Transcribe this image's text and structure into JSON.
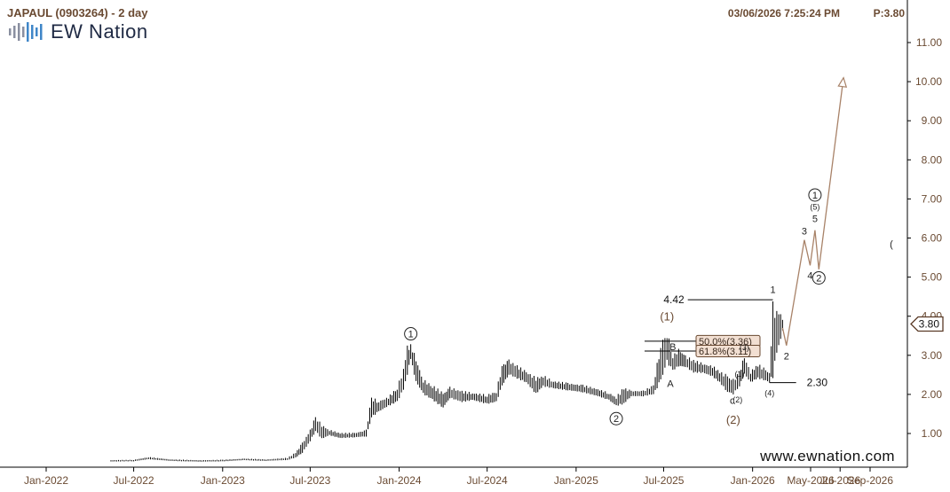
{
  "header": {
    "symbol": "JAPAUL (0903264) - 2 day",
    "datetime": "03/06/2026 7:25:24 PM",
    "price_label": "P:3.80",
    "logo_text": "EW Nation",
    "watermark": "www.ewnation.com"
  },
  "colors": {
    "wave_path": "#a88268",
    "wave_label": "#6a4a32",
    "price_bar": "#000000",
    "label_fill": "#f2dfd2",
    "label_border": "#6a4a32"
  },
  "chart_data": {
    "type": "bar",
    "y_axis": {
      "range": [
        0.5,
        11.6
      ],
      "ticks": [
        "1.00",
        "2.00",
        "3.00",
        "4.00",
        "5.00",
        "6.00",
        "7.00",
        "8.00",
        "9.00",
        "10.00",
        "11.00"
      ],
      "position": "right"
    },
    "x_axis": {
      "ticks": [
        "Jan-2022",
        "Jul-2022",
        "Jan-2023",
        "Jul-2023",
        "Jan-2024",
        "Jul-2024",
        "Jan-2025",
        "Jul-2025",
        "Jan-2026",
        "May-2026",
        "Jul-2026",
        "Sep-2026"
      ]
    },
    "price_series": [
      [
        "2022-05-15",
        0.3,
        0.32
      ],
      [
        "2022-07-01",
        0.29,
        0.33
      ],
      [
        "2022-08-01",
        0.34,
        0.4
      ],
      [
        "2022-09-15",
        0.3,
        0.34
      ],
      [
        "2022-11-15",
        0.28,
        0.32
      ],
      [
        "2023-01-01",
        0.29,
        0.33
      ],
      [
        "2023-02-15",
        0.32,
        0.36
      ],
      [
        "2023-04-01",
        0.3,
        0.34
      ],
      [
        "2023-05-15",
        0.32,
        0.38
      ],
      [
        "2023-06-01",
        0.38,
        0.52
      ],
      [
        "2023-06-15",
        0.5,
        0.78
      ],
      [
        "2023-07-01",
        0.8,
        1.1
      ],
      [
        "2023-07-12",
        1.05,
        1.45
      ],
      [
        "2023-07-25",
        0.85,
        1.25
      ],
      [
        "2023-08-10",
        0.95,
        1.1
      ],
      [
        "2023-09-01",
        0.88,
        1.02
      ],
      [
        "2023-10-01",
        0.9,
        1.02
      ],
      [
        "2023-10-25",
        0.92,
        1.1
      ],
      [
        "2023-11-05",
        1.4,
        1.95
      ],
      [
        "2023-11-20",
        1.55,
        1.85
      ],
      [
        "2023-12-10",
        1.7,
        1.95
      ],
      [
        "2023-12-28",
        1.8,
        2.2
      ],
      [
        "2024-01-10",
        2.1,
        2.7
      ],
      [
        "2024-01-18",
        2.5,
        3.25
      ],
      [
        "2024-01-25",
        2.9,
        3.3
      ],
      [
        "2024-02-05",
        2.3,
        2.95
      ],
      [
        "2024-02-20",
        2.0,
        2.4
      ],
      [
        "2024-03-10",
        1.85,
        2.25
      ],
      [
        "2024-04-01",
        1.65,
        2.05
      ],
      [
        "2024-04-15",
        1.9,
        2.2
      ],
      [
        "2024-05-10",
        1.8,
        2.1
      ],
      [
        "2024-06-01",
        1.85,
        2.05
      ],
      [
        "2024-07-01",
        1.75,
        2.0
      ],
      [
        "2024-07-20",
        1.8,
        2.1
      ],
      [
        "2024-08-01",
        2.2,
        2.8
      ],
      [
        "2024-08-15",
        2.5,
        2.9
      ],
      [
        "2024-09-01",
        2.4,
        2.75
      ],
      [
        "2024-09-20",
        2.3,
        2.6
      ],
      [
        "2024-10-10",
        2.0,
        2.45
      ],
      [
        "2024-10-25",
        2.2,
        2.5
      ],
      [
        "2024-11-15",
        2.15,
        2.35
      ],
      [
        "2024-12-15",
        2.1,
        2.3
      ],
      [
        "2025-01-15",
        2.05,
        2.25
      ],
      [
        "2025-02-15",
        1.95,
        2.15
      ],
      [
        "2025-03-10",
        1.85,
        2.05
      ],
      [
        "2025-03-25",
        1.7,
        1.95
      ],
      [
        "2025-04-10",
        1.75,
        2.2
      ],
      [
        "2025-04-25",
        1.95,
        2.1
      ],
      [
        "2025-05-20",
        1.95,
        2.1
      ],
      [
        "2025-06-10",
        2.0,
        2.25
      ],
      [
        "2025-06-25",
        2.3,
        3.4
      ],
      [
        "2025-07-08",
        2.8,
        3.65
      ],
      [
        "2025-07-20",
        2.6,
        3.0
      ],
      [
        "2025-08-01",
        2.7,
        3.2
      ],
      [
        "2025-08-15",
        2.7,
        3.0
      ],
      [
        "2025-09-01",
        2.55,
        2.9
      ],
      [
        "2025-09-20",
        2.55,
        2.8
      ],
      [
        "2025-10-10",
        2.45,
        2.75
      ],
      [
        "2025-10-25",
        2.3,
        2.6
      ],
      [
        "2025-11-10",
        2.05,
        2.5
      ],
      [
        "2025-11-22",
        2.0,
        2.4
      ],
      [
        "2025-12-05",
        2.2,
        2.6
      ],
      [
        "2025-12-15",
        2.5,
        3.0
      ],
      [
        "2025-12-28",
        2.3,
        2.6
      ],
      [
        "2026-01-12",
        2.4,
        2.8
      ],
      [
        "2026-01-28",
        2.35,
        2.65
      ],
      [
        "2026-02-05",
        2.3,
        2.55
      ],
      [
        "2026-02-12",
        2.4,
        4.42
      ],
      [
        "2026-02-20",
        3.0,
        4.3
      ],
      [
        "2026-03-04",
        3.6,
        4.0
      ]
    ],
    "projection_path": [
      [
        "2026-03-04",
        3.7
      ],
      [
        "2026-03-12",
        3.25
      ],
      [
        "2026-04-18",
        5.95
      ],
      [
        "2026-04-30",
        5.3
      ],
      [
        "2026-05-10",
        6.2
      ],
      [
        "2026-05-18",
        5.2
      ],
      [
        "2026-07-08",
        10.1
      ]
    ],
    "levels": [
      {
        "label": "4.42",
        "value": 4.42,
        "from": "2025-08-20",
        "to": "2026-02-12",
        "label_side": "left"
      },
      {
        "label": "2.30",
        "value": 2.3,
        "from": "2026-02-05",
        "to": "2026-04-01",
        "label_side": "right"
      }
    ],
    "fib_boxes": [
      {
        "label": "50.0%(3.36)",
        "value": 3.36
      },
      {
        "label": "61.8%(3.11)",
        "value": 3.11
      }
    ],
    "price_marker": {
      "label": "3.80",
      "value": 3.8
    },
    "wave_labels": [
      {
        "text": "1",
        "circled": true,
        "date": "2024-01-25",
        "price": 3.55
      },
      {
        "text": "2",
        "circled": true,
        "date": "2025-03-25",
        "price": 1.38
      },
      {
        "text": "(1)",
        "circled": false,
        "date": "2025-07-08",
        "price": 3.98
      },
      {
        "text": "B",
        "circled": false,
        "date": "2025-07-20",
        "price": 3.22
      },
      {
        "text": "A",
        "circled": false,
        "date": "2025-07-15",
        "price": 2.28
      },
      {
        "text": "c",
        "circled": false,
        "date": "2025-11-20",
        "price": 1.85
      },
      {
        "text": "(2)",
        "circled": false,
        "date": "2025-11-22",
        "price": 1.34
      },
      {
        "text": "(1)",
        "circled": false,
        "date": "2025-12-05",
        "price": 2.54
      },
      {
        "text": "(2)",
        "circled": false,
        "date": "2025-12-01",
        "price": 1.88
      },
      {
        "text": "(3)",
        "circled": false,
        "date": "2025-12-15",
        "price": 3.22
      },
      {
        "text": "(4)",
        "circled": false,
        "date": "2026-02-05",
        "price": 2.05
      },
      {
        "text": "1",
        "circled": false,
        "date": "2026-02-12",
        "price": 4.68
      },
      {
        "text": "2",
        "circled": false,
        "date": "2026-03-12",
        "price": 2.98
      },
      {
        "text": "3",
        "circled": false,
        "date": "2026-04-18",
        "price": 6.18
      },
      {
        "text": "4",
        "circled": false,
        "date": "2026-04-30",
        "price": 5.05
      },
      {
        "text": "5",
        "circled": false,
        "date": "2026-05-10",
        "price": 6.5
      },
      {
        "text": "(5)",
        "circled": false,
        "date": "2026-05-10",
        "price": 6.82
      },
      {
        "text": "1",
        "circled": true,
        "date": "2026-05-10",
        "price": 7.1
      },
      {
        "text": "2",
        "circled": true,
        "date": "2026-05-18",
        "price": 4.98
      },
      {
        "text": "(",
        "circled": false,
        "date": "2026-10-15",
        "price": 5.85
      }
    ]
  }
}
